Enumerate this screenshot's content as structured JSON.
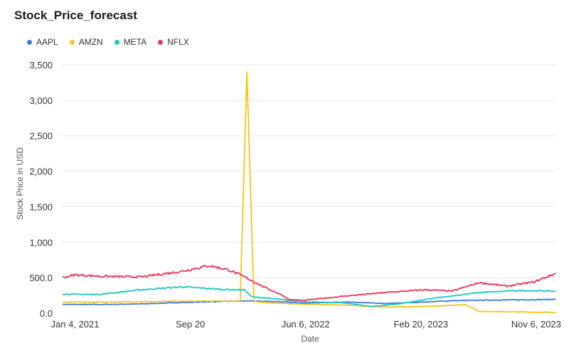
{
  "chart_data": {
    "type": "line",
    "title": "Stock_Price_forecast",
    "xlabel": "Date",
    "ylabel": "Stock Price in USD",
    "ylim": [
      0,
      3500
    ],
    "xlim": [
      "2020-12-07",
      "2023-12-21"
    ],
    "grid": "horizontal",
    "legend": "top-left",
    "y_ticks": [
      {
        "value": 0,
        "label": "0.0"
      },
      {
        "value": 500,
        "label": "500.0"
      },
      {
        "value": 1000,
        "label": "1,000"
      },
      {
        "value": 1500,
        "label": "1,500"
      },
      {
        "value": 2000,
        "label": "2,000"
      },
      {
        "value": 2500,
        "label": "2,500"
      },
      {
        "value": 3000,
        "label": "3,000"
      },
      {
        "value": 3500,
        "label": "3,500"
      }
    ],
    "x_ticks": [
      {
        "date": "2021-01-04",
        "label": "Jan 4, 2021"
      },
      {
        "date": "2021-09-20",
        "label": "Sep 20"
      },
      {
        "date": "2022-06-06",
        "label": "Jun 6, 2022"
      },
      {
        "date": "2023-02-20",
        "label": "Feb 20, 2023"
      },
      {
        "date": "2023-11-06",
        "label": "Nov 6, 2023"
      }
    ],
    "series": [
      {
        "name": "AAPL",
        "color": "#3b7be0",
        "x": [
          "2020-12-07",
          "2021-03-01",
          "2021-06-01",
          "2021-09-01",
          "2021-12-01",
          "2022-01-15",
          "2022-04-01",
          "2022-06-01",
          "2022-09-01",
          "2022-12-01",
          "2023-02-01",
          "2023-05-01",
          "2023-08-01",
          "2023-11-01",
          "2023-12-20"
        ],
        "values": [
          123,
          122,
          130,
          150,
          165,
          172,
          165,
          140,
          158,
          135,
          150,
          175,
          185,
          190,
          195
        ]
      },
      {
        "name": "AMZN",
        "color": "#f5c518",
        "x": [
          "2020-12-07",
          "2021-03-01",
          "2021-06-01",
          "2021-09-01",
          "2021-12-01",
          "2022-01-10",
          "2022-01-25",
          "2022-02-10",
          "2022-03-01",
          "2022-06-01",
          "2022-09-01",
          "2022-12-01",
          "2023-03-01",
          "2023-06-01",
          "2023-07-01",
          "2023-09-01",
          "2023-12-20"
        ],
        "values": [
          155,
          155,
          162,
          168,
          170,
          168,
          3400,
          168,
          150,
          125,
          115,
          85,
          95,
          120,
          25,
          20,
          10
        ]
      },
      {
        "name": "META",
        "color": "#1fc7c0",
        "x": [
          "2020-12-07",
          "2021-01-04",
          "2021-03-01",
          "2021-06-01",
          "2021-09-01",
          "2021-12-01",
          "2022-01-20",
          "2022-02-05",
          "2022-04-01",
          "2022-06-01",
          "2022-09-01",
          "2022-11-01",
          "2023-01-01",
          "2023-04-01",
          "2023-07-01",
          "2023-10-01",
          "2023-12-20"
        ],
        "values": [
          270,
          265,
          265,
          330,
          370,
          335,
          325,
          230,
          200,
          160,
          145,
          95,
          130,
          220,
          290,
          320,
          310
        ]
      },
      {
        "name": "NFLX",
        "color": "#e8365d",
        "x": [
          "2020-12-07",
          "2021-01-04",
          "2021-03-01",
          "2021-06-01",
          "2021-09-01",
          "2021-11-01",
          "2021-12-15",
          "2022-01-20",
          "2022-03-01",
          "2022-04-15",
          "2022-05-01",
          "2022-06-01",
          "2022-09-01",
          "2022-12-01",
          "2023-03-01",
          "2023-05-01",
          "2023-07-01",
          "2023-09-01",
          "2023-11-01",
          "2023-12-20"
        ],
        "values": [
          500,
          540,
          520,
          510,
          590,
          670,
          610,
          510,
          380,
          250,
          190,
          180,
          240,
          290,
          330,
          310,
          430,
          380,
          440,
          560
        ]
      }
    ]
  }
}
